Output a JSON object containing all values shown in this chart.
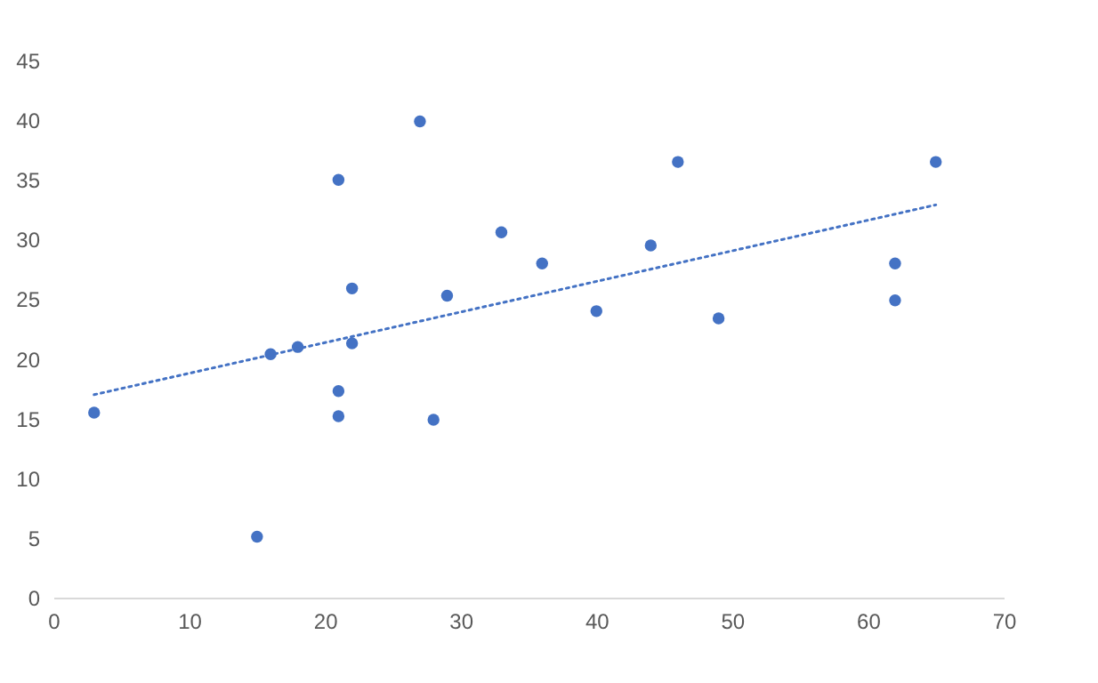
{
  "chart_data": {
    "type": "scatter",
    "xlim": [
      0,
      70
    ],
    "xticks": [
      0,
      10,
      20,
      30,
      40,
      50,
      60,
      70
    ],
    "ylim": [
      0,
      45
    ],
    "yticks": [
      0,
      5,
      10,
      15,
      20,
      25,
      30,
      35,
      40,
      45
    ],
    "grid": false,
    "marker": "circle",
    "series": [
      {
        "color": "#4472c4",
        "x": [
          3,
          15,
          16,
          18,
          21,
          21,
          21,
          22,
          22,
          27,
          28,
          29,
          33,
          36,
          40,
          44,
          46,
          49,
          62,
          62,
          65
        ],
        "values": [
          15.5,
          5.1,
          20.4,
          21,
          35,
          17.3,
          15.2,
          25.9,
          21.3,
          39.9,
          14.9,
          25.3,
          30.6,
          28,
          24,
          29.5,
          36.5,
          23.4,
          28,
          24.9,
          36.5
        ]
      },
      {
        "type": "line",
        "color": "#4472c4",
        "line_style": "dotted",
        "marker": "none",
        "x": [
          3,
          65
        ],
        "values": [
          17,
          32.9
        ]
      }
    ]
  }
}
